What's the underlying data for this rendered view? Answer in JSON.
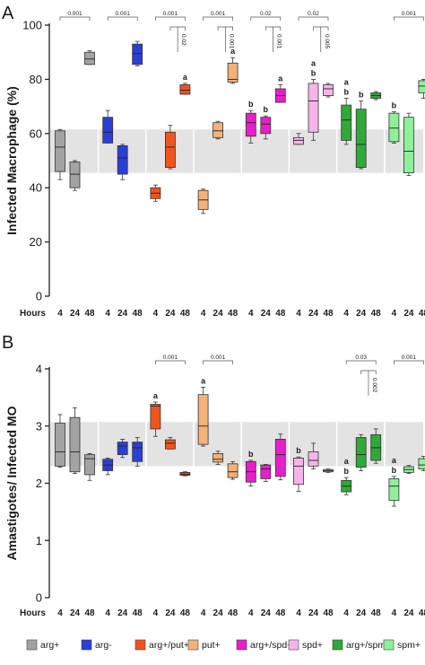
{
  "colors": {
    "arg+": "#a3a3a3",
    "arg-": "#2b3fd6",
    "arg+/put+": "#f0541e",
    "put+": "#f2b27a",
    "arg+/spd+": "#e620c8",
    "spd+": "#f6b5ea",
    "arg+/spm+": "#31a83a",
    "spm+": "#8ff09a",
    "band": "#e3e3e3"
  },
  "legend": {
    "items": [
      "arg+",
      "arg-",
      "arg+/put+",
      "put+",
      "arg+/spd+",
      "spd+",
      "arg+/spm+",
      "spm+"
    ]
  },
  "chart_data": [
    {
      "panel": "A",
      "type": "box",
      "ylabel": "Infected Macrophage (%)",
      "ylim": [
        0,
        100
      ],
      "yticks": [
        0,
        20,
        40,
        60,
        80,
        100
      ],
      "band": [
        45.5,
        61.5
      ],
      "hours_label": "Hours",
      "hours": [
        "4",
        "24",
        "48"
      ],
      "groups": [
        {
          "name": "arg+",
          "boxes": [
            {
              "hour": "4",
              "min": 43,
              "q1": 46,
              "median": 55,
              "q3": 61,
              "max": 61.5
            },
            {
              "hour": "24",
              "min": 39,
              "q1": 40,
              "median": 45,
              "q3": 49.5,
              "max": 50
            },
            {
              "hour": "48",
              "min": 85.5,
              "q1": 85.5,
              "median": 87.5,
              "q3": 90,
              "max": 90.5
            }
          ]
        },
        {
          "name": "arg-",
          "boxes": [
            {
              "hour": "4",
              "min": 56.5,
              "q1": 56.5,
              "median": 60.5,
              "q3": 66,
              "max": 68.5
            },
            {
              "hour": "24",
              "min": 43,
              "q1": 45,
              "median": 51,
              "q3": 55.5,
              "max": 56
            },
            {
              "hour": "48",
              "min": 85,
              "q1": 85.5,
              "median": 89.5,
              "q3": 93,
              "max": 94
            }
          ]
        },
        {
          "name": "arg+/put+",
          "boxes": [
            {
              "hour": "4",
              "min": 35,
              "q1": 36,
              "median": 38,
              "q3": 40,
              "max": 41
            },
            {
              "hour": "24",
              "min": 47,
              "q1": 47.5,
              "median": 55,
              "q3": 60.5,
              "max": 63
            },
            {
              "hour": "48",
              "min": 74.5,
              "q1": 74.5,
              "median": 76,
              "q3": 78,
              "max": 78.5
            }
          ]
        },
        {
          "name": "put+",
          "boxes": [
            {
              "hour": "4",
              "min": 30.5,
              "q1": 32,
              "median": 35.5,
              "q3": 39,
              "max": 39.5
            },
            {
              "hour": "24",
              "min": 58,
              "q1": 58.5,
              "median": 61,
              "q3": 64,
              "max": 64.5
            },
            {
              "hour": "48",
              "min": 78.5,
              "q1": 79,
              "median": 80,
              "q3": 86,
              "max": 88
            }
          ]
        },
        {
          "name": "arg+/spd+",
          "boxes": [
            {
              "hour": "4",
              "min": 56.5,
              "q1": 59,
              "median": 64,
              "q3": 67.5,
              "max": 68.5
            },
            {
              "hour": "24",
              "min": 58,
              "q1": 60,
              "median": 63.5,
              "q3": 66,
              "max": 66.5
            },
            {
              "hour": "48",
              "min": 71.5,
              "q1": 71.5,
              "median": 74,
              "q3": 76.5,
              "max": 78
            }
          ]
        },
        {
          "name": "spd+",
          "boxes": [
            {
              "hour": "4",
              "min": 56,
              "q1": 56,
              "median": 57.5,
              "q3": 58.5,
              "max": 60
            },
            {
              "hour": "24",
              "min": 57.5,
              "q1": 60.5,
              "median": 72,
              "q3": 78.5,
              "max": 80
            },
            {
              "hour": "48",
              "min": 73.5,
              "q1": 74,
              "median": 76.5,
              "q3": 78,
              "max": 78.5
            }
          ]
        },
        {
          "name": "arg+/spm+",
          "boxes": [
            {
              "hour": "4",
              "min": 56,
              "q1": 57.5,
              "median": 65,
              "q3": 70.5,
              "max": 73
            },
            {
              "hour": "24",
              "min": 47,
              "q1": 47.5,
              "median": 56,
              "q3": 69,
              "max": 72
            },
            {
              "hour": "48",
              "min": 72.5,
              "q1": 73,
              "median": 74,
              "q3": 75,
              "max": 75.5
            }
          ]
        },
        {
          "name": "spm+",
          "boxes": [
            {
              "hour": "4",
              "min": 56.5,
              "q1": 57,
              "median": 62,
              "q3": 67.5,
              "max": 68
            },
            {
              "hour": "24",
              "min": 44.5,
              "q1": 45.5,
              "median": 53.5,
              "q3": 66,
              "max": 67.5
            },
            {
              "hour": "48",
              "min": 73,
              "q1": 75,
              "median": 77.5,
              "q3": 79.5,
              "max": 80
            }
          ]
        }
      ],
      "letters": [
        {
          "group": "arg+/put+",
          "hour": "48",
          "text": "a"
        },
        {
          "group": "put+",
          "hour": "48",
          "text": "a"
        },
        {
          "group": "arg+/spd+",
          "hour": "4",
          "text": "b"
        },
        {
          "group": "arg+/spd+",
          "hour": "24",
          "text": "b"
        },
        {
          "group": "arg+/spd+",
          "hour": "48",
          "text": "a"
        },
        {
          "group": "spd+",
          "hour": "24",
          "text": "a"
        },
        {
          "group": "spd+",
          "hour": "24",
          "text": "b"
        },
        {
          "group": "arg+/spm+",
          "hour": "4",
          "text": "a"
        },
        {
          "group": "arg+/spm+",
          "hour": "4",
          "text": "b"
        },
        {
          "group": "arg+/spm+",
          "hour": "24",
          "text": "b"
        },
        {
          "group": "spm+",
          "hour": "4",
          "text": "b"
        }
      ],
      "brackets": [
        {
          "group": "arg+",
          "from": "4",
          "to": "48",
          "label": "0.001"
        },
        {
          "group": "arg-",
          "from": "4",
          "to": "48",
          "label": "0.001"
        },
        {
          "group": "arg+/put+",
          "from": "4",
          "to": "48",
          "label": "0.001"
        },
        {
          "group": "arg+/put+",
          "from": "24",
          "to": "48",
          "label": "0.02",
          "rotated": true
        },
        {
          "group": "put+",
          "from": "4",
          "to": "48",
          "label": "0.001"
        },
        {
          "group": "put+",
          "from": "24",
          "to": "48",
          "label": "0.001",
          "rotated": true
        },
        {
          "group": "arg+/spd+",
          "from": "4",
          "to": "48",
          "label": "0.02"
        },
        {
          "group": "arg+/spd+",
          "from": "24",
          "to": "48",
          "label": "0.001",
          "rotated": true
        },
        {
          "group": "spd+",
          "from": "4",
          "to": "48",
          "label": "0.02"
        },
        {
          "group": "spd+",
          "from": "24",
          "to": "48",
          "label": "0.005",
          "rotated": true
        },
        {
          "group": "spm+",
          "from": "4",
          "to": "48",
          "label": "0.001"
        }
      ]
    },
    {
      "panel": "B",
      "type": "box",
      "ylabel": "Amastigotes/ Infected MO",
      "ylim": [
        0,
        4
      ],
      "yticks": [
        0,
        1,
        2,
        3,
        4
      ],
      "band": [
        2.3,
        3.07
      ],
      "hours_label": "Hours",
      "hours": [
        "4",
        "24",
        "48"
      ],
      "groups": [
        {
          "name": "arg+",
          "boxes": [
            {
              "hour": "4",
              "min": 2.28,
              "q1": 2.3,
              "median": 2.55,
              "q3": 3.05,
              "max": 3.2
            },
            {
              "hour": "24",
              "min": 2.17,
              "q1": 2.2,
              "median": 2.55,
              "q3": 3.15,
              "max": 3.32
            },
            {
              "hour": "48",
              "min": 2.05,
              "q1": 2.15,
              "median": 2.43,
              "q3": 2.5,
              "max": 2.52
            }
          ]
        },
        {
          "name": "arg-",
          "boxes": [
            {
              "hour": "4",
              "min": 2.15,
              "q1": 2.22,
              "median": 2.32,
              "q3": 2.42,
              "max": 2.44
            },
            {
              "hour": "24",
              "min": 2.45,
              "q1": 2.5,
              "median": 2.65,
              "q3": 2.72,
              "max": 2.77
            },
            {
              "hour": "48",
              "min": 2.3,
              "q1": 2.38,
              "median": 2.62,
              "q3": 2.72,
              "max": 2.8
            }
          ]
        },
        {
          "name": "arg+/put+",
          "boxes": [
            {
              "hour": "4",
              "min": 2.82,
              "q1": 2.95,
              "median": 3.35,
              "q3": 3.38,
              "max": 3.42
            },
            {
              "hour": "24",
              "min": 2.6,
              "q1": 2.6,
              "median": 2.7,
              "q3": 2.76,
              "max": 2.8
            },
            {
              "hour": "48",
              "min": 2.13,
              "q1": 2.14,
              "median": 2.16,
              "q3": 2.19,
              "max": 2.2
            }
          ]
        },
        {
          "name": "put+",
          "boxes": [
            {
              "hour": "4",
              "min": 2.65,
              "q1": 2.68,
              "median": 3.0,
              "q3": 3.55,
              "max": 3.68
            },
            {
              "hour": "24",
              "min": 2.33,
              "q1": 2.37,
              "median": 2.42,
              "q3": 2.52,
              "max": 2.56
            },
            {
              "hour": "48",
              "min": 2.07,
              "q1": 2.1,
              "median": 2.2,
              "q3": 2.34,
              "max": 2.38
            }
          ]
        },
        {
          "name": "arg+/spd+",
          "boxes": [
            {
              "hour": "4",
              "min": 1.95,
              "q1": 2.02,
              "median": 2.2,
              "q3": 2.38,
              "max": 2.4
            },
            {
              "hour": "24",
              "min": 2.03,
              "q1": 2.08,
              "median": 2.25,
              "q3": 2.32,
              "max": 2.33
            },
            {
              "hour": "48",
              "min": 2.06,
              "q1": 2.12,
              "median": 2.5,
              "q3": 2.77,
              "max": 2.86
            }
          ]
        },
        {
          "name": "spd+",
          "boxes": [
            {
              "hour": "4",
              "min": 1.86,
              "q1": 1.98,
              "median": 2.3,
              "q3": 2.44,
              "max": 2.46
            },
            {
              "hour": "24",
              "min": 2.25,
              "q1": 2.3,
              "median": 2.4,
              "q3": 2.55,
              "max": 2.7
            },
            {
              "hour": "48",
              "min": 2.19,
              "q1": 2.2,
              "median": 2.22,
              "q3": 2.24,
              "max": 2.25
            }
          ]
        },
        {
          "name": "arg+/spm+",
          "boxes": [
            {
              "hour": "4",
              "min": 1.8,
              "q1": 1.85,
              "median": 1.95,
              "q3": 2.05,
              "max": 2.1
            },
            {
              "hour": "24",
              "min": 2.22,
              "q1": 2.28,
              "median": 2.5,
              "q3": 2.8,
              "max": 2.85
            },
            {
              "hour": "48",
              "min": 2.35,
              "q1": 2.4,
              "median": 2.62,
              "q3": 2.85,
              "max": 2.95
            }
          ]
        },
        {
          "name": "spm+",
          "boxes": [
            {
              "hour": "4",
              "min": 1.6,
              "q1": 1.7,
              "median": 1.95,
              "q3": 2.08,
              "max": 2.12
            },
            {
              "hour": "24",
              "min": 2.17,
              "q1": 2.19,
              "median": 2.24,
              "q3": 2.29,
              "max": 2.31
            },
            {
              "hour": "48",
              "min": 2.22,
              "q1": 2.25,
              "median": 2.32,
              "q3": 2.43,
              "max": 2.47
            }
          ]
        }
      ],
      "letters": [
        {
          "group": "arg+/put+",
          "hour": "4",
          "text": "a"
        },
        {
          "group": "put+",
          "hour": "4",
          "text": "a"
        },
        {
          "group": "arg+/spd+",
          "hour": "4",
          "text": "b"
        },
        {
          "group": "spd+",
          "hour": "4",
          "text": "b"
        },
        {
          "group": "arg+/spm+",
          "hour": "4",
          "text": "a"
        },
        {
          "group": "arg+/spm+",
          "hour": "4",
          "text": "b"
        },
        {
          "group": "spm+",
          "hour": "4",
          "text": "a"
        },
        {
          "group": "spm+",
          "hour": "4",
          "text": "b"
        }
      ],
      "brackets": [
        {
          "group": "arg+/put+",
          "from": "4",
          "to": "48",
          "label": "0.001"
        },
        {
          "group": "put+",
          "from": "4",
          "to": "48",
          "label": "0.001"
        },
        {
          "group": "arg+/spm+",
          "from": "4",
          "to": "48",
          "label": "0.03"
        },
        {
          "group": "arg+/spm+",
          "from": "24",
          "to": "48",
          "label": "0.002",
          "rotated": true
        },
        {
          "group": "spm+",
          "from": "4",
          "to": "48",
          "label": "0.001"
        }
      ]
    }
  ]
}
